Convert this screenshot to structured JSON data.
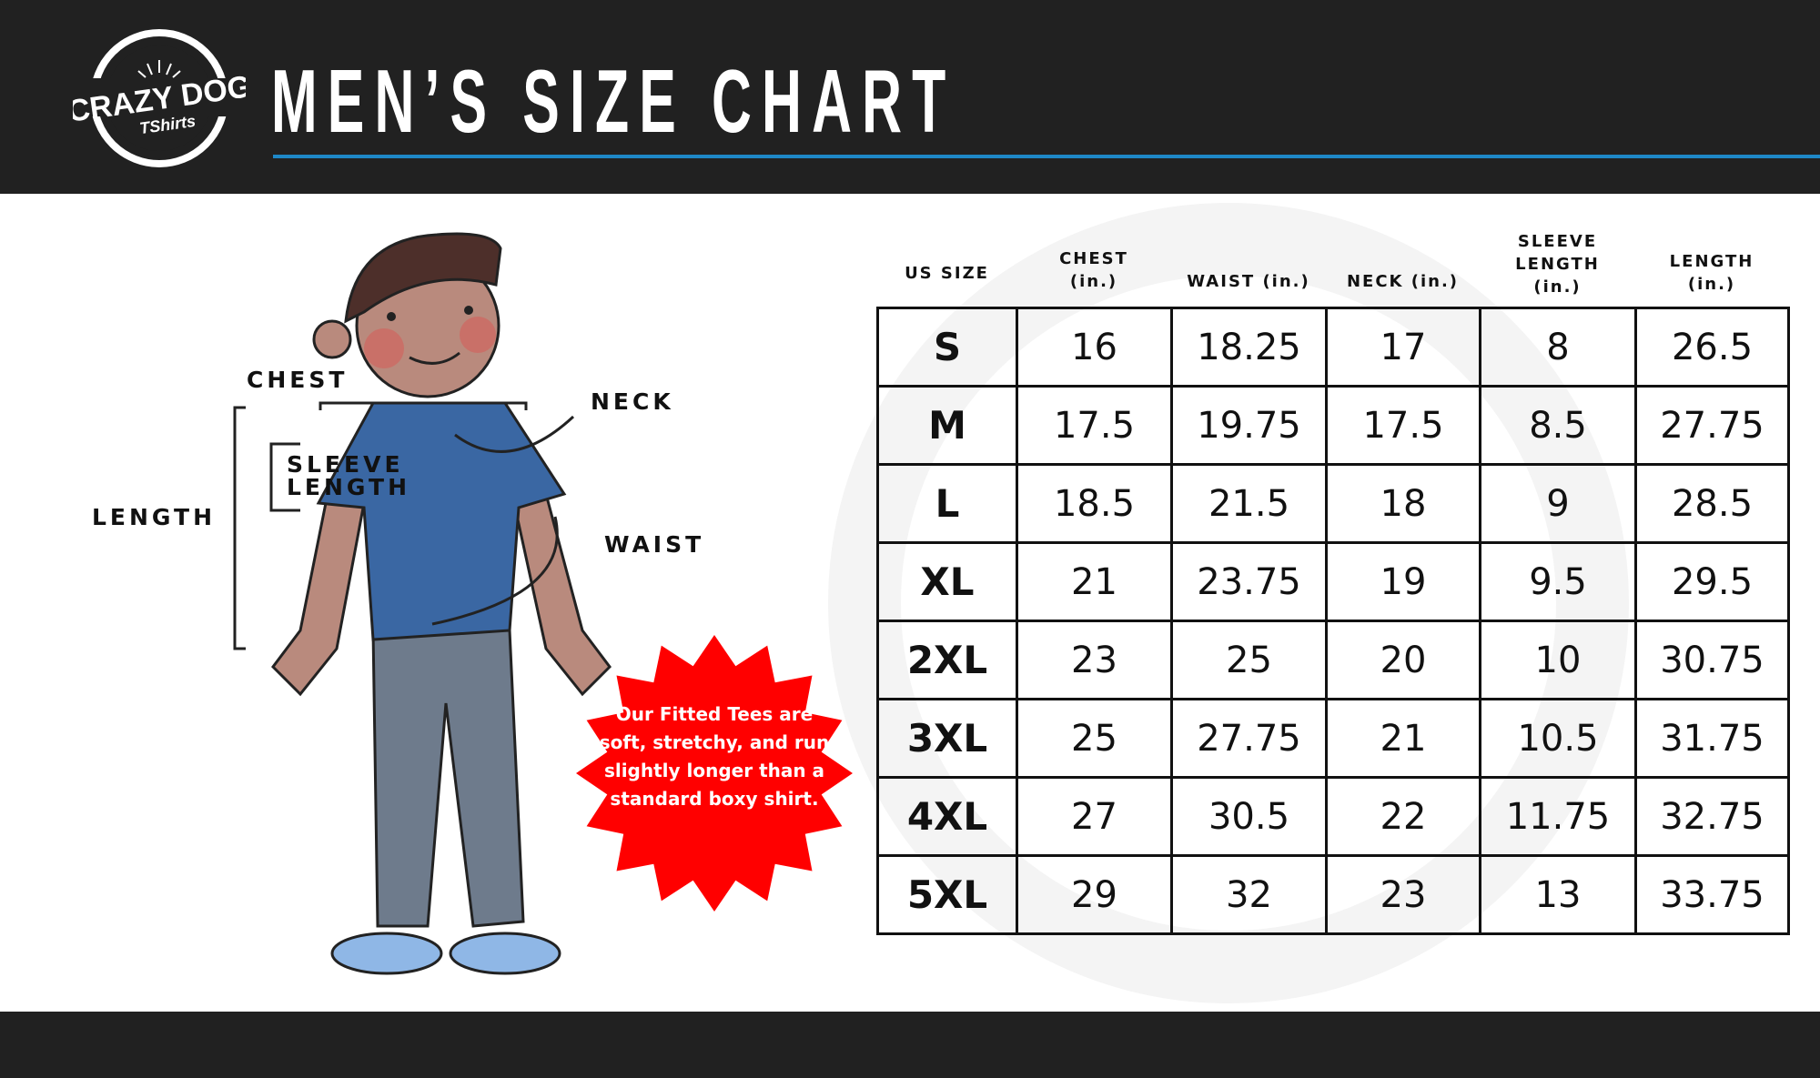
{
  "header": {
    "title": "MEN’S SIZE CHART",
    "brand_logo": "Crazy Dog T-Shirts — Custom Shirts & More — Rochester, NY",
    "accent_color": "#1e88c7"
  },
  "figure": {
    "labels": {
      "chest": "CHEST",
      "neck": "NECK",
      "sleeve_line1": "SLEEVE",
      "sleeve_line2": "LENGTH",
      "length": "LENGTH",
      "waist": "WAIST"
    },
    "badge": "Our Fitted Tees are soft, stretchy, and run slightly longer than a standard boxy shirt.",
    "badge_color": "#ff0000"
  },
  "table": {
    "headers": [
      {
        "l1": "",
        "l2": "US SIZE"
      },
      {
        "l1": "CHEST",
        "l2": "(in.)"
      },
      {
        "l1": "",
        "l2": "WAIST (in.)"
      },
      {
        "l1": "",
        "l2": "NECK (in.)"
      },
      {
        "l0": "SLEEVE",
        "l1": "LENGTH",
        "l2": "(in.)"
      },
      {
        "l1": "LENGTH",
        "l2": "(in.)"
      }
    ],
    "rows": [
      [
        "S",
        "16",
        "18.25",
        "17",
        "8",
        "26.5"
      ],
      [
        "M",
        "17.5",
        "19.75",
        "17.5",
        "8.5",
        "27.75"
      ],
      [
        "L",
        "18.5",
        "21.5",
        "18",
        "9",
        "28.5"
      ],
      [
        "XL",
        "21",
        "23.75",
        "19",
        "9.5",
        "29.5"
      ],
      [
        "2XL",
        "23",
        "25",
        "20",
        "10",
        "30.75"
      ],
      [
        "3XL",
        "25",
        "27.75",
        "21",
        "10.5",
        "31.75"
      ],
      [
        "4XL",
        "27",
        "30.5",
        "22",
        "11.75",
        "32.75"
      ],
      [
        "5XL",
        "29",
        "32",
        "23",
        "13",
        "33.75"
      ]
    ]
  }
}
